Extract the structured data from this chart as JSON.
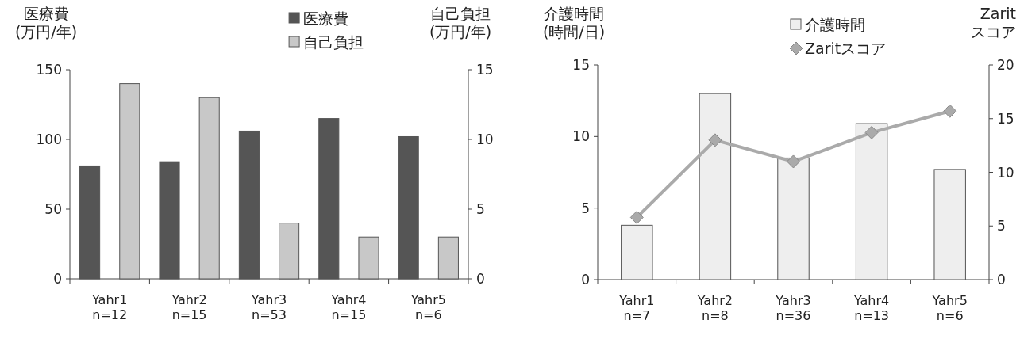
{
  "chart_data": [
    {
      "type": "bar",
      "ylabel": "医療費\n(万円/年)",
      "y2label": "自己負担\n(万円/年)",
      "categories": [
        "Yahr1\nn=12",
        "Yahr2\nn=15",
        "Yahr3\nn=53",
        "Yahr4\nn=15",
        "Yahr5\nn=6"
      ],
      "series": [
        {
          "name": "医療費",
          "color": "#555555",
          "values": [
            81,
            84,
            106,
            115,
            102
          ]
        },
        {
          "name": "自己負担",
          "color": "#c8c8c8",
          "axis": "y2",
          "values": [
            14,
            13,
            4,
            3,
            3
          ]
        }
      ],
      "ylim": [
        0,
        150
      ],
      "yticks": [
        0,
        50,
        100,
        150
      ],
      "y2lim": [
        0,
        15
      ],
      "y2ticks": [
        0,
        5,
        10,
        15
      ],
      "legend": "top"
    },
    {
      "type": "bar",
      "ylabel": "介護時間\n(時間/日)",
      "y2label": "Zarit\nスコア",
      "categories": [
        "Yahr1\nn=7",
        "Yahr2\nn=8",
        "Yahr3\nn=36",
        "Yahr4\nn=13",
        "Yahr5\nn=6"
      ],
      "series": [
        {
          "name": "介護時間",
          "color": "#eeeeee",
          "values": [
            3.8,
            13,
            8.5,
            10.9,
            7.7
          ]
        },
        {
          "name": "Zaritスコア",
          "color": "#aaaaaa",
          "type": "line",
          "axis": "y2",
          "marker": "diamond",
          "values": [
            5.8,
            13,
            11,
            13.7,
            15.7
          ]
        }
      ],
      "ylim": [
        0,
        15
      ],
      "yticks": [
        0,
        5,
        10,
        15
      ],
      "y2lim": [
        0,
        20
      ],
      "y2ticks": [
        0,
        5,
        10,
        15,
        20
      ],
      "legend": "top right"
    }
  ]
}
